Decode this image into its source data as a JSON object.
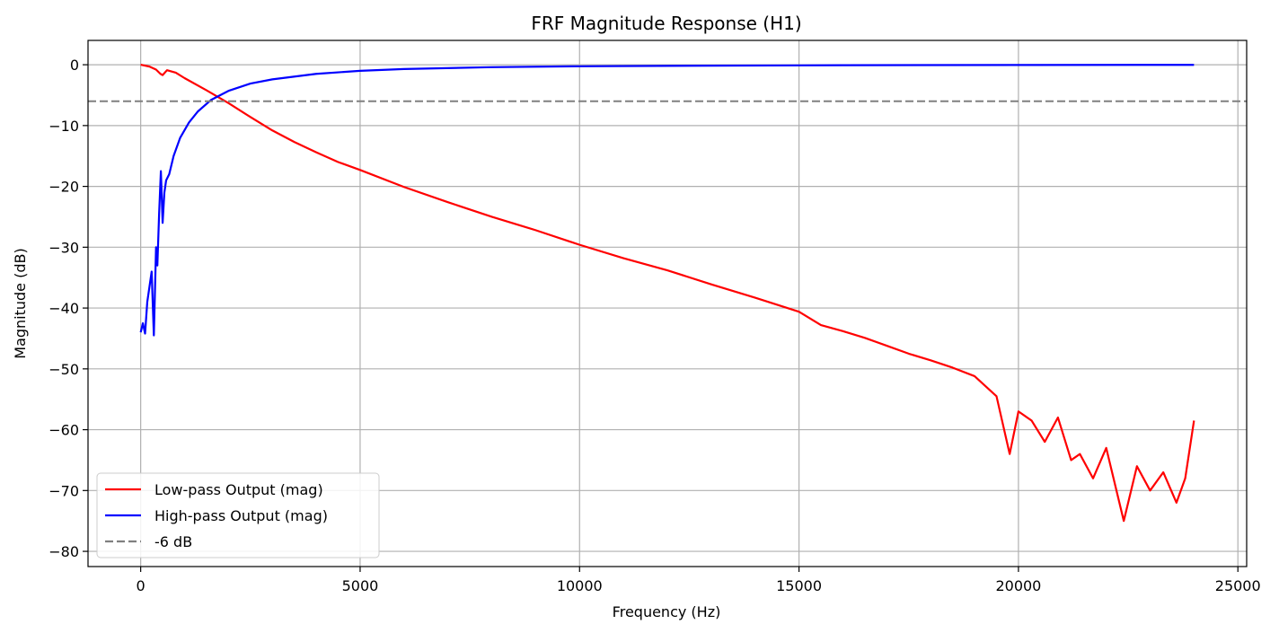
{
  "chart_data": {
    "type": "line",
    "title": "FRF Magnitude Response (H1)",
    "xlabel": "Frequency (Hz)",
    "ylabel": "Magnitude (dB)",
    "xlim": [
      -1200,
      25200
    ],
    "ylim": [
      -82.5,
      4
    ],
    "xticks": [
      0,
      5000,
      10000,
      15000,
      20000,
      25000
    ],
    "yticks": [
      0,
      -10,
      -20,
      -30,
      -40,
      -50,
      -60,
      -70,
      -80
    ],
    "grid": true,
    "legend_position": "lower-left",
    "series": [
      {
        "name": "Low-pass Output (mag)",
        "color": "#ff0000",
        "style": "solid",
        "x": [
          0,
          200,
          350,
          450,
          500,
          600,
          800,
          1000,
          1500,
          2000,
          2500,
          3000,
          3500,
          4000,
          4500,
          5000,
          6000,
          7000,
          8000,
          9000,
          10000,
          11000,
          12000,
          13000,
          14000,
          15000,
          15500,
          16000,
          16500,
          17000,
          17500,
          18000,
          18500,
          19000,
          19500,
          19800,
          20000,
          20300,
          20600,
          20900,
          21200,
          21400,
          21700,
          22000,
          22400,
          22700,
          23000,
          23300,
          23600,
          23800,
          24000
        ],
        "y": [
          0,
          -0.3,
          -0.8,
          -1.5,
          -1.7,
          -0.9,
          -1.3,
          -2.2,
          -4.2,
          -6.3,
          -8.6,
          -10.8,
          -12.7,
          -14.4,
          -16.0,
          -17.3,
          -20.1,
          -22.6,
          -25.0,
          -27.2,
          -29.6,
          -31.8,
          -33.8,
          -36.1,
          -38.3,
          -40.6,
          -42.8,
          -43.8,
          -44.9,
          -46.2,
          -47.5,
          -48.6,
          -49.8,
          -51.2,
          -54.5,
          -64.0,
          -57.0,
          -58.5,
          -62.0,
          -58.0,
          -65.0,
          -64.0,
          -68.0,
          -63.0,
          -75.0,
          -66.0,
          -70.0,
          -67.0,
          -72.0,
          -68.0,
          -58.5
        ]
      },
      {
        "name": "High-pass Output (mag)",
        "color": "#0000ff",
        "style": "solid",
        "x": [
          0,
          50,
          100,
          150,
          200,
          250,
          300,
          350,
          380,
          420,
          460,
          500,
          540,
          580,
          650,
          750,
          900,
          1100,
          1300,
          1600,
          2000,
          2500,
          3000,
          4000,
          5000,
          6000,
          8000,
          10000,
          13000,
          16000,
          20000,
          24000
        ],
        "y": [
          -44.0,
          -42.5,
          -44.2,
          -39.0,
          -36.5,
          -34.0,
          -44.5,
          -30.0,
          -33.0,
          -24.5,
          -17.5,
          -26.0,
          -21.0,
          -19.0,
          -18.0,
          -15.0,
          -12.0,
          -9.5,
          -7.7,
          -5.8,
          -4.3,
          -3.1,
          -2.4,
          -1.5,
          -1.0,
          -0.7,
          -0.4,
          -0.25,
          -0.15,
          -0.08,
          -0.04,
          -0.02
        ]
      },
      {
        "name": "-6 dB",
        "color": "#808080",
        "style": "dashed",
        "x": [
          -1200,
          25200
        ],
        "y": [
          -6,
          -6
        ]
      }
    ]
  }
}
